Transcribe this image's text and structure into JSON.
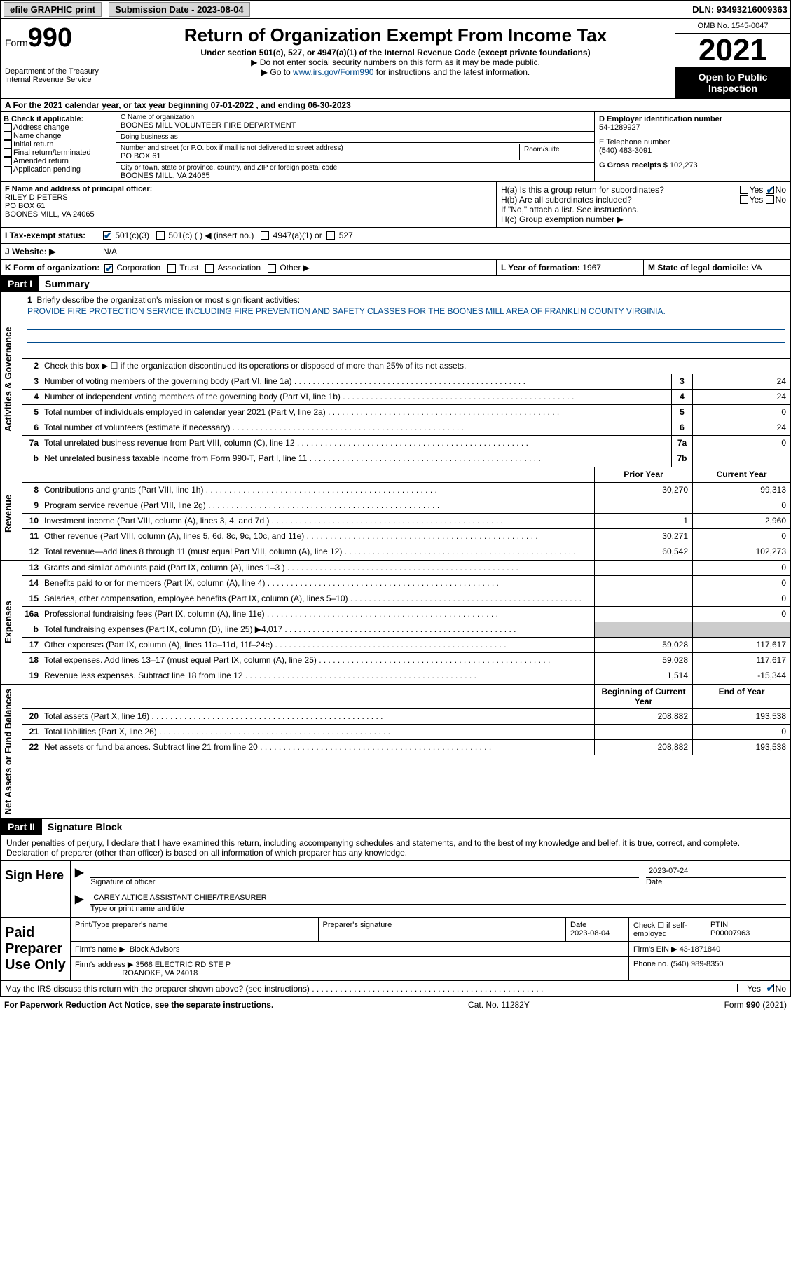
{
  "topbar": {
    "efile": "efile GRAPHIC print",
    "sub_date_lbl": "Submission Date - 2023-08-04",
    "dln": "DLN: 93493216009363"
  },
  "header": {
    "form_word": "Form",
    "form_num": "990",
    "dept": "Department of the Treasury\nInternal Revenue Service",
    "title": "Return of Organization Exempt From Income Tax",
    "subtitle": "Under section 501(c), 527, or 4947(a)(1) of the Internal Revenue Code (except private foundations)",
    "note1": "▶ Do not enter social security numbers on this form as it may be made public.",
    "note2_pre": "▶ Go to ",
    "note2_link": "www.irs.gov/Form990",
    "note2_post": " for instructions and the latest information.",
    "omb": "OMB No. 1545-0047",
    "year": "2021",
    "open_pub": "Open to Public Inspection"
  },
  "lineA": "A For the 2021 calendar year, or tax year beginning 07-01-2022    , and ending 06-30-2023",
  "boxB": {
    "hdr": "B Check if applicable:",
    "opts": [
      "Address change",
      "Name change",
      "Initial return",
      "Final return/terminated",
      "Amended return",
      "Application pending"
    ]
  },
  "boxC": {
    "name_lbl": "C Name of organization",
    "name": "BOONES MILL VOLUNTEER FIRE DEPARTMENT",
    "dba_lbl": "Doing business as",
    "dba": "",
    "addr_lbl": "Number and street (or P.O. box if mail is not delivered to street address)",
    "room_lbl": "Room/suite",
    "addr": "PO BOX 61",
    "city_lbl": "City or town, state or province, country, and ZIP or foreign postal code",
    "city": "BOONES MILL, VA  24065"
  },
  "boxDEG": {
    "d_lbl": "D Employer identification number",
    "d_val": "54-1289927",
    "e_lbl": "E Telephone number",
    "e_val": "(540) 483-3091",
    "g_lbl": "G Gross receipts $",
    "g_val": "102,273"
  },
  "boxF": {
    "lbl": "F Name and address of principal officer:",
    "name": "RILEY D PETERS",
    "addr1": "PO BOX 61",
    "addr2": "BOONES MILL, VA  24065"
  },
  "boxH": {
    "ha": "H(a)  Is this a group return for subordinates?",
    "hb": "H(b)  Are all subordinates included?",
    "hb_note": "If \"No,\" attach a list. See instructions.",
    "hc": "H(c)  Group exemption number ▶",
    "yes": "Yes",
    "no": "No"
  },
  "lineI": {
    "lbl": "I   Tax-exempt status:",
    "o1": "501(c)(3)",
    "o2": "501(c) (  ) ◀ (insert no.)",
    "o3": "4947(a)(1) or",
    "o4": "527"
  },
  "lineJ": {
    "lbl": "J   Website: ▶",
    "val": "N/A"
  },
  "lineK": {
    "lbl": "K Form of organization:",
    "o1": "Corporation",
    "o2": "Trust",
    "o3": "Association",
    "o4": "Other ▶"
  },
  "lineL": {
    "lbl": "L Year of formation:",
    "val": "1967"
  },
  "lineM": {
    "lbl": "M State of legal domicile:",
    "val": "VA"
  },
  "parts": {
    "p1": "Part I",
    "p1t": "Summary",
    "p2": "Part II",
    "p2t": "Signature Block"
  },
  "vtabs": {
    "ag": "Activities & Governance",
    "rev": "Revenue",
    "exp": "Expenses",
    "na": "Net Assets or Fund Balances"
  },
  "summary": {
    "l1": "Briefly describe the organization's mission or most significant activities:",
    "l1_text": "PROVIDE FIRE PROTECTION SERVICE INCLUDING FIRE PREVENTION AND SAFETY CLASSES FOR THE BOONES MILL AREA OF FRANKLIN COUNTY VIRGINIA.",
    "l2": "Check this box ▶ ☐  if the organization discontinued its operations or disposed of more than 25% of its net assets.",
    "lines_ag": [
      {
        "n": "3",
        "d": "Number of voting members of the governing body (Part VI, line 1a)",
        "b": "3",
        "v": "24"
      },
      {
        "n": "4",
        "d": "Number of independent voting members of the governing body (Part VI, line 1b)",
        "b": "4",
        "v": "24"
      },
      {
        "n": "5",
        "d": "Total number of individuals employed in calendar year 2021 (Part V, line 2a)",
        "b": "5",
        "v": "0"
      },
      {
        "n": "6",
        "d": "Total number of volunteers (estimate if necessary)",
        "b": "6",
        "v": "24"
      },
      {
        "n": "7a",
        "d": "Total unrelated business revenue from Part VIII, column (C), line 12",
        "b": "7a",
        "v": "0"
      },
      {
        "n": "b",
        "d": "Net unrelated business taxable income from Form 990-T, Part I, line 11",
        "b": "7b",
        "v": ""
      }
    ],
    "hdr_prior": "Prior Year",
    "hdr_curr": "Current Year",
    "lines_rev": [
      {
        "n": "8",
        "d": "Contributions and grants (Part VIII, line 1h)",
        "p": "30,270",
        "c": "99,313"
      },
      {
        "n": "9",
        "d": "Program service revenue (Part VIII, line 2g)",
        "p": "",
        "c": "0"
      },
      {
        "n": "10",
        "d": "Investment income (Part VIII, column (A), lines 3, 4, and 7d )",
        "p": "1",
        "c": "2,960"
      },
      {
        "n": "11",
        "d": "Other revenue (Part VIII, column (A), lines 5, 6d, 8c, 9c, 10c, and 11e)",
        "p": "30,271",
        "c": "0"
      },
      {
        "n": "12",
        "d": "Total revenue—add lines 8 through 11 (must equal Part VIII, column (A), line 12)",
        "p": "60,542",
        "c": "102,273"
      }
    ],
    "lines_exp": [
      {
        "n": "13",
        "d": "Grants and similar amounts paid (Part IX, column (A), lines 1–3 )",
        "p": "",
        "c": "0"
      },
      {
        "n": "14",
        "d": "Benefits paid to or for members (Part IX, column (A), line 4)",
        "p": "",
        "c": "0"
      },
      {
        "n": "15",
        "d": "Salaries, other compensation, employee benefits (Part IX, column (A), lines 5–10)",
        "p": "",
        "c": "0"
      },
      {
        "n": "16a",
        "d": "Professional fundraising fees (Part IX, column (A), line 11e)",
        "p": "",
        "c": "0"
      },
      {
        "n": "b",
        "d": "Total fundraising expenses (Part IX, column (D), line 25) ▶4,017",
        "p": "GREY",
        "c": "GREY"
      },
      {
        "n": "17",
        "d": "Other expenses (Part IX, column (A), lines 11a–11d, 11f–24e)",
        "p": "59,028",
        "c": "117,617"
      },
      {
        "n": "18",
        "d": "Total expenses. Add lines 13–17 (must equal Part IX, column (A), line 25)",
        "p": "59,028",
        "c": "117,617"
      },
      {
        "n": "19",
        "d": "Revenue less expenses. Subtract line 18 from line 12",
        "p": "1,514",
        "c": "-15,344"
      }
    ],
    "hdr_bcy": "Beginning of Current Year",
    "hdr_eoy": "End of Year",
    "lines_na": [
      {
        "n": "20",
        "d": "Total assets (Part X, line 16)",
        "p": "208,882",
        "c": "193,538"
      },
      {
        "n": "21",
        "d": "Total liabilities (Part X, line 26)",
        "p": "",
        "c": "0"
      },
      {
        "n": "22",
        "d": "Net assets or fund balances. Subtract line 21 from line 20",
        "p": "208,882",
        "c": "193,538"
      }
    ]
  },
  "sig": {
    "intro": "Under penalties of perjury, I declare that I have examined this return, including accompanying schedules and statements, and to the best of my knowledge and belief, it is true, correct, and complete. Declaration of preparer (other than officer) is based on all information of which preparer has any knowledge.",
    "sign_here": "Sign Here",
    "sig_officer": "Signature of officer",
    "date": "2023-07-24",
    "date_lbl": "Date",
    "typed": "CAREY ALTICE  ASSISTANT CHIEF/TREASURER",
    "typed_lbl": "Type or print name and title",
    "paid": "Paid Preparer Use Only",
    "p_name_lbl": "Print/Type preparer's name",
    "p_sig_lbl": "Preparer's signature",
    "p_date_lbl": "Date",
    "p_date": "2023-08-04",
    "p_check_lbl": "Check ☐ if self-employed",
    "ptin_lbl": "PTIN",
    "ptin": "P00007963",
    "firm_name_lbl": "Firm's name    ▶",
    "firm_name": "Block Advisors",
    "firm_ein_lbl": "Firm's EIN ▶",
    "firm_ein": "43-1871840",
    "firm_addr_lbl": "Firm's address ▶",
    "firm_addr1": "3568 ELECTRIC RD STE P",
    "firm_addr2": "ROANOKE, VA  24018",
    "phone_lbl": "Phone no.",
    "phone": "(540) 989-8350"
  },
  "footer": {
    "irs_q": "May the IRS discuss this return with the preparer shown above? (see instructions)",
    "yes": "Yes",
    "no": "No",
    "pra": "For Paperwork Reduction Act Notice, see the separate instructions.",
    "cat": "Cat. No. 11282Y",
    "form": "Form 990 (2021)"
  }
}
